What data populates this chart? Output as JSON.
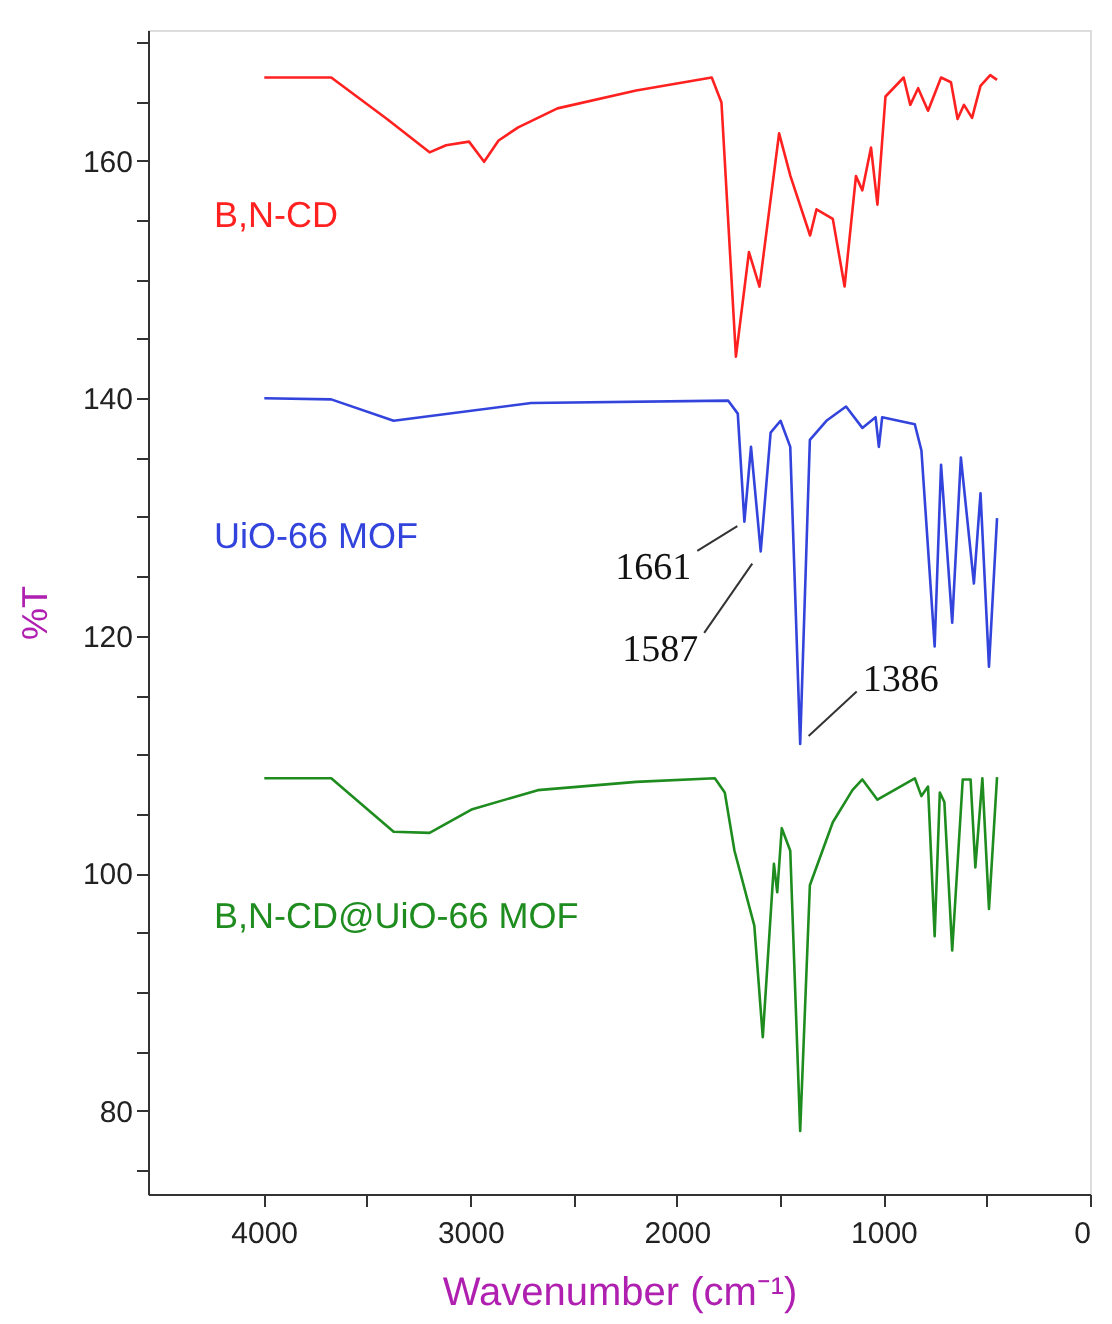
{
  "chart_data": {
    "type": "line",
    "xlabel": "Wavenumber (cm⁻¹)",
    "ylabel": "%T",
    "xlim": [
      4560,
      0
    ],
    "ylim": [
      73,
      171
    ],
    "xticks": [
      4000,
      {
        "value": 3500,
        "label": null
      },
      3000,
      {
        "value": 2500,
        "label": null
      },
      2000,
      {
        "value": 1500,
        "label": null
      },
      1000,
      {
        "value": 500,
        "label": null
      },
      0
    ],
    "yticks": [
      {
        "value": 75,
        "label": null
      },
      80,
      {
        "value": 85,
        "label": null
      },
      {
        "value": 90,
        "label": null
      },
      {
        "value": 95,
        "label": null
      },
      100,
      {
        "value": 105,
        "label": null
      },
      {
        "value": 110,
        "label": null
      },
      {
        "value": 115,
        "label": null
      },
      120,
      {
        "value": 125,
        "label": null
      },
      {
        "value": 130,
        "label": null
      },
      {
        "value": 135,
        "label": null
      },
      140,
      {
        "value": 145,
        "label": null
      },
      {
        "value": 150,
        "label": null
      },
      {
        "value": 155,
        "label": null
      },
      160,
      {
        "value": 165,
        "label": null
      },
      {
        "value": 170,
        "label": null
      }
    ],
    "grid": false,
    "legend": false,
    "marker": "none",
    "line_style": "solid",
    "series": [
      {
        "name": "B,N-CD",
        "color": "#ff2020",
        "x": [
          3997,
          3673,
          3403,
          3197,
          3117,
          3006,
          2933,
          2863,
          2768,
          2578,
          2197,
          1831,
          1784,
          1714,
          1651,
          1600,
          1505,
          1450,
          1355,
          1324,
          1245,
          1188,
          1133,
          1102,
          1060,
          1029,
          990,
          902,
          870,
          832,
          784,
          721,
          673,
          641,
          610,
          571,
          530,
          483,
          450
        ],
        "values": [
          167.0,
          167.0,
          163.5,
          160.7,
          161.3,
          161.6,
          159.9,
          161.7,
          162.8,
          164.4,
          165.9,
          167.0,
          164.9,
          143.5,
          152.3,
          149.4,
          162.3,
          158.7,
          153.7,
          155.9,
          155.1,
          149.4,
          158.7,
          157.5,
          161.1,
          156.3,
          165.4,
          167.0,
          164.7,
          166.1,
          164.2,
          167.0,
          166.6,
          163.5,
          164.7,
          163.6,
          166.3,
          167.2,
          166.8
        ]
      },
      {
        "name": "UiO-66 MOF",
        "color": "#3344dd",
        "x": [
          3997,
          3673,
          3371,
          2705,
          1752,
          1705,
          1673,
          1641,
          1594,
          1546,
          1498,
          1451,
          1403,
          1356,
          1276,
          1181,
          1102,
          1038,
          1022,
          1006,
          848,
          816,
          752,
          721,
          667,
          625,
          562,
          530,
          489,
          450
        ],
        "values": [
          140.0,
          139.9,
          138.1,
          139.6,
          139.8,
          138.7,
          129.6,
          135.9,
          127.1,
          137.1,
          138.1,
          135.9,
          110.9,
          136.5,
          138.1,
          139.3,
          137.5,
          138.4,
          135.9,
          138.4,
          137.8,
          135.6,
          119.1,
          134.4,
          121.1,
          135.0,
          124.4,
          132.0,
          117.4,
          129.9
        ]
      },
      {
        "name": "B,N-CD@UiO-66 MOF",
        "color": "#1e8c1e",
        "x": [
          3997,
          3673,
          3371,
          3197,
          2990,
          2673,
          2197,
          1816,
          1768,
          1721,
          1625,
          1584,
          1530,
          1514,
          1492,
          1451,
          1403,
          1356,
          1245,
          1150,
          1102,
          1029,
          848,
          816,
          784,
          752,
          727,
          705,
          667,
          616,
          578,
          555,
          521,
          489,
          450
        ],
        "values": [
          108.0,
          108.0,
          103.5,
          103.4,
          105.4,
          107.0,
          107.7,
          108.0,
          106.8,
          101.9,
          95.6,
          86.2,
          100.8,
          98.4,
          103.8,
          101.9,
          78.3,
          99.0,
          104.3,
          107.0,
          107.9,
          106.2,
          108.0,
          106.5,
          107.3,
          94.7,
          106.8,
          106.0,
          93.5,
          107.9,
          107.9,
          100.5,
          108.0,
          97.0,
          108.1
        ]
      }
    ],
    "annotations": [
      {
        "text": "1661",
        "x": 1673,
        "y": 129.6
      },
      {
        "text": "1587",
        "x": 1594,
        "y": 127.1
      },
      {
        "text": "1386",
        "x": 1403,
        "y": 110.9
      }
    ]
  }
}
